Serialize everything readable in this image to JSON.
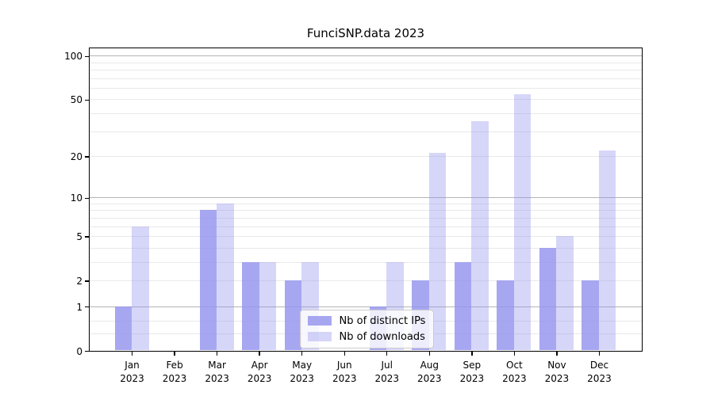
{
  "chart_data": {
    "type": "bar",
    "title": "FunciSNP.data 2023",
    "x": {
      "months": [
        "Jan",
        "Feb",
        "Mar",
        "Apr",
        "May",
        "Jun",
        "Jul",
        "Aug",
        "Sep",
        "Oct",
        "Nov",
        "Dec"
      ],
      "year": "2023"
    },
    "series": [
      {
        "name": "Nb of distinct IPs",
        "color": "rgba(148,148,238,0.82)",
        "values": [
          1,
          0,
          8,
          3,
          2,
          0,
          1,
          2,
          3,
          2,
          4,
          2
        ]
      },
      {
        "name": "Nb of downloads",
        "color": "rgba(148,148,238,0.38)",
        "values": [
          6,
          0,
          9,
          3,
          3,
          0,
          3,
          21,
          35,
          54,
          5,
          22
        ]
      }
    ],
    "y_axis": {
      "scale": "log1p",
      "tick_values": [
        0,
        1,
        2,
        5,
        10,
        20,
        50,
        100
      ],
      "tick_labels": [
        "0",
        "1",
        "2",
        "5",
        "10",
        "20",
        "50",
        "100"
      ],
      "axis_max": 113,
      "decade_gridlines": [
        1,
        10,
        100
      ],
      "minor_gridlines": [
        0.3,
        0.6,
        2,
        3,
        4,
        5,
        6,
        7,
        8,
        9,
        20,
        30,
        40,
        50,
        60,
        70,
        80,
        90
      ]
    },
    "legend": {
      "location": "inside lower center"
    },
    "grid": true,
    "ylim": [
      0,
      113
    ]
  },
  "colors": {
    "background": "#ffffff",
    "bar_base": "#9494ee",
    "gridline_minor": "#e9e9e9",
    "gridline_decade": "#b4b4b4",
    "axis": "#000000",
    "legend_border": "#cccccc",
    "legend_background": "rgba(255,255,255,0.8)",
    "text": "#000000"
  }
}
